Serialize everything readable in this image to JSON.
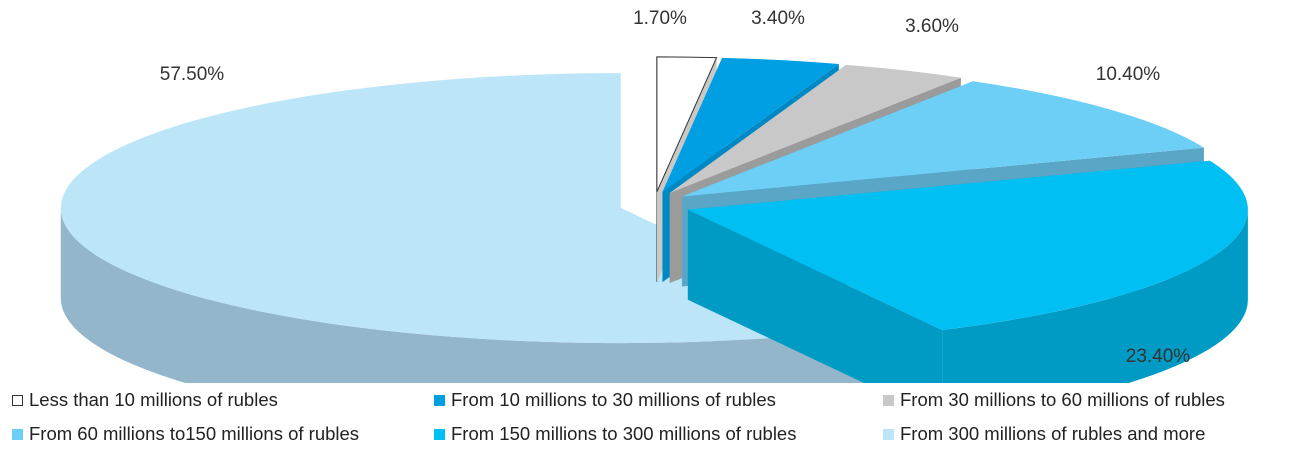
{
  "chart_data": {
    "type": "pie",
    "style": "3d-exploded",
    "categories": [
      "Less than 10 millions of rubles",
      "From 10 millions to 30 millions of rubles",
      "From 30 millions to 60 millions of rubles",
      "From 60 millions to150 millions of rubles",
      "From 150 millions to 300 millions of rubles",
      "From 300 millions of rubles and more"
    ],
    "values": [
      1.7,
      3.4,
      3.6,
      10.4,
      23.4,
      57.5
    ],
    "labels": [
      "1.70%",
      "3.40%",
      "3.60%",
      "10.40%",
      "23.40%",
      "57.50%"
    ],
    "colors": [
      "#ffffff",
      "#009fe3",
      "#c8c8c8",
      "#6dcff6",
      "#00bff3",
      "#bce6f8"
    ],
    "side_colors": [
      "#c8c8c8",
      "#0088c4",
      "#9b9b9b",
      "#5aa6c6",
      "#009bc4",
      "#93b6cb"
    ],
    "legend_position": "bottom"
  }
}
